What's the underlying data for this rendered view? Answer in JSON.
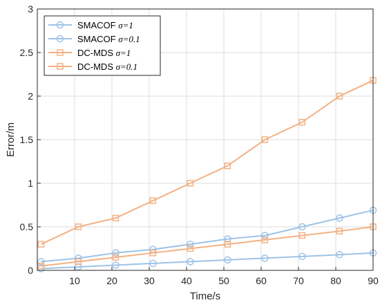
{
  "chart_data": {
    "type": "line",
    "title": "",
    "xlabel": "Time/s",
    "ylabel": "Error/m",
    "xlim": [
      0,
      90
    ],
    "ylim": [
      0,
      3
    ],
    "xticks": [
      10,
      20,
      30,
      40,
      50,
      60,
      70,
      80,
      90
    ],
    "xtick_labels": [
      "10",
      "20",
      "30",
      "40",
      "50",
      "60",
      "70",
      "80",
      "90"
    ],
    "yticks": [
      0,
      0.5,
      1,
      1.5,
      2,
      2.5,
      3
    ],
    "ytick_labels": [
      "0",
      "0.5",
      "1",
      "1.5",
      "2",
      "2.5",
      "3"
    ],
    "grid": true,
    "legend_position": "top-left",
    "x": [
      1,
      11,
      21,
      31,
      41,
      51,
      61,
      71,
      81,
      90
    ],
    "series": [
      {
        "name": "SMACOF",
        "sigma": "σ=1",
        "color": "#9DC3E6",
        "marker": "circle",
        "values": [
          0.02,
          0.04,
          0.06,
          0.08,
          0.1,
          0.12,
          0.14,
          0.16,
          0.18,
          0.2
        ]
      },
      {
        "name": "SMACOF",
        "sigma": "σ=0.1",
        "color": "#9DC3E6",
        "marker": "circle",
        "values": [
          0.1,
          0.14,
          0.2,
          0.24,
          0.3,
          0.36,
          0.4,
          0.5,
          0.6,
          0.69
        ]
      },
      {
        "name": "DC-MDS",
        "sigma": "σ=1",
        "color": "#F4B183",
        "marker": "square",
        "values": [
          0.05,
          0.1,
          0.15,
          0.2,
          0.25,
          0.3,
          0.35,
          0.4,
          0.45,
          0.5
        ]
      },
      {
        "name": "DC-MDS",
        "sigma": "σ=0.1",
        "color": "#F4B183",
        "marker": "square",
        "values": [
          0.3,
          0.5,
          0.6,
          0.8,
          1.0,
          1.2,
          1.5,
          1.7,
          2.0,
          2.18
        ]
      }
    ]
  }
}
